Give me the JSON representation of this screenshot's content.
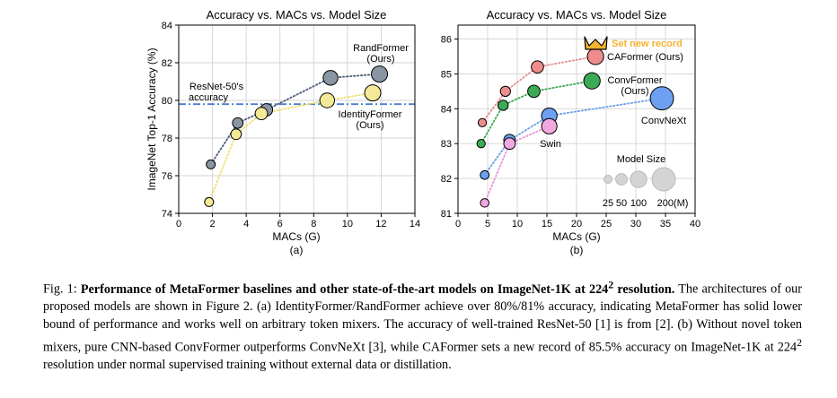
{
  "chart_data": [
    {
      "type": "scatter",
      "panel_label": "(a)",
      "title": "Accuracy vs. MACs vs. Model Size",
      "xlabel": "MACs (G)",
      "ylabel": "ImageNet Top-1 Accuracy (%)",
      "xlim": [
        0,
        14
      ],
      "ylim": [
        74,
        84
      ],
      "xticks": [
        0,
        2,
        4,
        6,
        8,
        10,
        12,
        14
      ],
      "yticks": [
        74,
        76,
        78,
        80,
        82,
        84
      ],
      "grid": true,
      "reference_line": {
        "label": "ResNet-50's accuracy",
        "y": 79.8,
        "color": "#4a7fd0"
      },
      "series": [
        {
          "name": "RandFormer (Ours)",
          "color": "#8a96a4",
          "line_color": "#4a5b77",
          "points": [
            {
              "x": 1.9,
              "y": 76.6,
              "params": 5
            },
            {
              "x": 3.5,
              "y": 78.8,
              "params": 11
            },
            {
              "x": 5.2,
              "y": 79.5,
              "params": 21
            },
            {
              "x": 9.0,
              "y": 81.2,
              "params": 39
            },
            {
              "x": 11.9,
              "y": 81.4,
              "params": 52
            }
          ]
        },
        {
          "name": "IdentityFormer (Ours)",
          "color": "#f4e996",
          "line_color": "#efe070",
          "points": [
            {
              "x": 1.8,
              "y": 74.6,
              "params": 5
            },
            {
              "x": 3.4,
              "y": 78.2,
              "params": 11
            },
            {
              "x": 4.9,
              "y": 79.3,
              "params": 21
            },
            {
              "x": 8.8,
              "y": 80.0,
              "params": 39
            },
            {
              "x": 11.5,
              "y": 80.4,
              "params": 52
            }
          ]
        }
      ],
      "labels": {
        "randformer": [
          "RandFormer",
          "(Ours)"
        ],
        "identityformer": [
          "IdentityFormer",
          "(Ours)"
        ],
        "resnet": [
          "ResNet-50's",
          "accuracy"
        ]
      }
    },
    {
      "type": "scatter",
      "panel_label": "(b)",
      "title": "Accuracy vs. MACs vs. Model Size",
      "xlabel": "MACs (G)",
      "ylabel": "",
      "xlim": [
        0,
        40
      ],
      "ylim": [
        81,
        86.4
      ],
      "xticks": [
        0,
        5,
        10,
        15,
        20,
        25,
        30,
        35,
        40
      ],
      "yticks": [
        81,
        82,
        83,
        84,
        85,
        86
      ],
      "grid": true,
      "series": [
        {
          "name": "CAFormer (Ours)",
          "color": "#ee8c8c",
          "line_color": "#e88f8f",
          "points": [
            {
              "x": 4.1,
              "y": 83.6,
              "params": 26
            },
            {
              "x": 8.0,
              "y": 84.5,
              "params": 39
            },
            {
              "x": 13.4,
              "y": 85.2,
              "params": 56
            },
            {
              "x": 23.2,
              "y": 85.5,
              "params": 99
            }
          ]
        },
        {
          "name": "ConvFormer (Ours)",
          "color": "#3caa54",
          "line_color": "#3caa54",
          "points": [
            {
              "x": 3.9,
              "y": 83.0,
              "params": 27
            },
            {
              "x": 7.6,
              "y": 84.1,
              "params": 40
            },
            {
              "x": 12.8,
              "y": 84.5,
              "params": 57
            },
            {
              "x": 22.6,
              "y": 84.8,
              "params": 100
            }
          ]
        },
        {
          "name": "ConvNeXt",
          "color": "#6da0f0",
          "line_color": "#6d9fe9",
          "points": [
            {
              "x": 4.5,
              "y": 82.1,
              "params": 29
            },
            {
              "x": 8.7,
              "y": 83.1,
              "params": 50
            },
            {
              "x": 15.4,
              "y": 83.8,
              "params": 89
            },
            {
              "x": 34.4,
              "y": 84.3,
              "params": 198
            }
          ]
        },
        {
          "name": "Swin",
          "color": "#f1a8df",
          "line_color": "#e895d8",
          "points": [
            {
              "x": 4.5,
              "y": 81.3,
              "params": 28
            },
            {
              "x": 8.7,
              "y": 83.0,
              "params": 50
            },
            {
              "x": 15.4,
              "y": 83.5,
              "params": 88
            }
          ]
        }
      ],
      "labels": {
        "caformer": "CAFormer (Ours)",
        "convformer": [
          "ConvFormer",
          "(Ours)"
        ],
        "convnext": "ConvNeXt",
        "swin": "Swin",
        "record": "Set new record",
        "model_size_title": "Model Size",
        "size_legend": [
          "25",
          "50",
          "100",
          "200(M)"
        ]
      },
      "size_legend_values": [
        25,
        50,
        100,
        200
      ],
      "highlight_color": "#f5b32f"
    }
  ],
  "caption": {
    "prefix": "Fig. 1: ",
    "bold_a": "Performance of MetaFormer baselines and other state-of-the-art models on ImageNet-1K at 224",
    "bold_sup": "2",
    "bold_b": " resolution.",
    "body_a": " The architectures of our proposed models are shown in Figure 2. (a) IdentityFormer/RandFormer achieve over 80%/81% accuracy, indicating MetaFormer has solid lower bound of performance and works well on arbitrary token mixers. The accuracy of well-trained ResNet-50 [1] is from [2]. (b) Without novel token mixers, pure CNN-based ConvFormer outperforms ConvNeXt [3], while CAFormer sets a new record of 85.5% accuracy on ImageNet-1K at 224",
    "body_sup": "2",
    "body_b": " resolution under normal supervised training without external data or distillation."
  }
}
